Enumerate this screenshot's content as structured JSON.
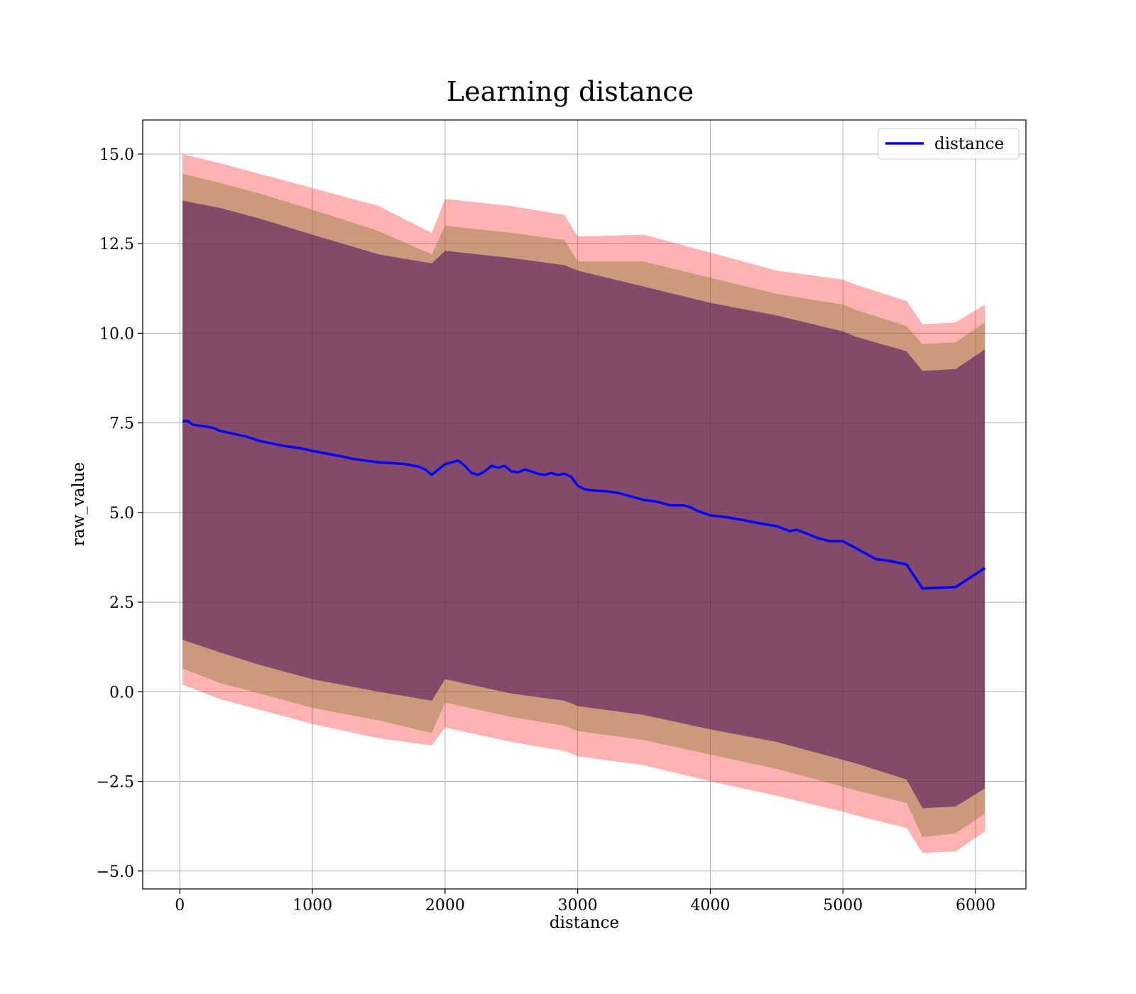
{
  "chart_data": {
    "type": "line",
    "title": "Learning distance",
    "xlabel": "distance",
    "ylabel": "raw_value",
    "xlim": [
      -280,
      6380
    ],
    "ylim": [
      -5.5,
      15.95
    ],
    "xticks": [
      0,
      1000,
      2000,
      3000,
      4000,
      5000,
      6000
    ],
    "xtick_labels": [
      "0",
      "1000",
      "2000",
      "3000",
      "4000",
      "5000",
      "6000"
    ],
    "yticks": [
      -5.0,
      -2.5,
      0.0,
      2.5,
      5.0,
      7.5,
      10.0,
      12.5,
      15.0
    ],
    "ytick_labels": [
      "−5.0",
      "−2.5",
      "0.0",
      "2.5",
      "5.0",
      "7.5",
      "10.0",
      "12.5",
      "15.0"
    ],
    "grid": true,
    "legend_position": "top-right",
    "legend": [
      "distance"
    ],
    "colors": {
      "line": "#0000ff",
      "band_outer": "#ff0000",
      "band_middle": "#8b7d3a",
      "band_inner": "#4a0a5a",
      "grid": "#b0b0b0"
    },
    "series": [
      {
        "name": "distance",
        "x": [
          20,
          60,
          100,
          150,
          200,
          260,
          300,
          400,
          500,
          600,
          700,
          800,
          900,
          1000,
          1100,
          1200,
          1300,
          1400,
          1500,
          1600,
          1700,
          1800,
          1850,
          1900,
          1950,
          2000,
          2050,
          2100,
          2150,
          2200,
          2250,
          2300,
          2350,
          2400,
          2450,
          2500,
          2550,
          2600,
          2650,
          2700,
          2750,
          2800,
          2850,
          2900,
          2950,
          3000,
          3050,
          3100,
          3200,
          3300,
          3400,
          3500,
          3600,
          3700,
          3800,
          3850,
          3900,
          4000,
          4100,
          4200,
          4300,
          4400,
          4500,
          4550,
          4600,
          4650,
          4700,
          4750,
          4800,
          4900,
          5000,
          5100,
          5150,
          5250,
          5350,
          5480,
          5600,
          5850,
          6070
        ],
        "values": [
          7.55,
          7.55,
          7.45,
          7.42,
          7.4,
          7.35,
          7.28,
          7.2,
          7.12,
          7.0,
          6.92,
          6.85,
          6.8,
          6.72,
          6.65,
          6.58,
          6.5,
          6.45,
          6.4,
          6.38,
          6.35,
          6.28,
          6.2,
          6.05,
          6.2,
          6.35,
          6.4,
          6.45,
          6.3,
          6.1,
          6.05,
          6.15,
          6.3,
          6.25,
          6.3,
          6.15,
          6.12,
          6.2,
          6.15,
          6.08,
          6.05,
          6.1,
          6.05,
          6.08,
          6.0,
          5.75,
          5.65,
          5.62,
          5.6,
          5.55,
          5.45,
          5.35,
          5.3,
          5.2,
          5.2,
          5.15,
          5.05,
          4.92,
          4.88,
          4.82,
          4.75,
          4.68,
          4.62,
          4.55,
          4.48,
          4.52,
          4.45,
          4.38,
          4.3,
          4.2,
          4.2,
          4.0,
          3.9,
          3.7,
          3.65,
          3.55,
          2.88,
          2.92,
          3.45
        ]
      }
    ],
    "bands": [
      {
        "x": [
          20,
          300,
          600,
          1000,
          1500,
          1900,
          2000,
          2500,
          2900,
          3000,
          3500,
          4000,
          4500,
          5000,
          5100,
          5480,
          5600,
          5850,
          6070
        ],
        "upper": [
          15.0,
          14.75,
          14.45,
          14.05,
          13.55,
          12.8,
          13.75,
          13.55,
          13.3,
          12.7,
          12.75,
          12.25,
          11.75,
          11.5,
          11.35,
          10.9,
          10.25,
          10.3,
          10.8
        ],
        "lower": [
          0.2,
          -0.2,
          -0.5,
          -0.9,
          -1.3,
          -1.5,
          -1.0,
          -1.4,
          -1.65,
          -1.8,
          -2.05,
          -2.5,
          -2.9,
          -3.35,
          -3.45,
          -3.8,
          -4.5,
          -4.45,
          -3.9
        ]
      },
      {
        "x": [
          20,
          300,
          600,
          1000,
          1500,
          1900,
          2000,
          2500,
          2900,
          3000,
          3500,
          4000,
          4500,
          5000,
          5100,
          5480,
          5600,
          5850,
          6070
        ],
        "upper": [
          14.45,
          14.2,
          13.9,
          13.45,
          12.85,
          12.2,
          13.0,
          12.8,
          12.6,
          12.0,
          12.0,
          11.55,
          11.1,
          10.8,
          10.65,
          10.2,
          9.7,
          9.75,
          10.3
        ],
        "lower": [
          0.65,
          0.25,
          -0.05,
          -0.45,
          -0.8,
          -1.15,
          -0.3,
          -0.7,
          -0.95,
          -1.1,
          -1.35,
          -1.75,
          -2.15,
          -2.65,
          -2.75,
          -3.1,
          -4.05,
          -3.95,
          -3.4
        ]
      },
      {
        "x": [
          20,
          300,
          600,
          1000,
          1500,
          1900,
          2000,
          2500,
          2900,
          3000,
          3500,
          4000,
          4500,
          5000,
          5100,
          5480,
          5600,
          5850,
          6070
        ],
        "upper": [
          13.7,
          13.5,
          13.2,
          12.75,
          12.2,
          11.95,
          12.3,
          12.1,
          11.9,
          11.75,
          11.3,
          10.85,
          10.5,
          10.05,
          9.9,
          9.5,
          8.95,
          9.0,
          9.55
        ],
        "lower": [
          1.45,
          1.1,
          0.75,
          0.35,
          0.0,
          -0.25,
          0.35,
          -0.05,
          -0.25,
          -0.4,
          -0.65,
          -1.05,
          -1.4,
          -1.9,
          -2.0,
          -2.45,
          -3.25,
          -3.2,
          -2.7
        ]
      }
    ]
  }
}
